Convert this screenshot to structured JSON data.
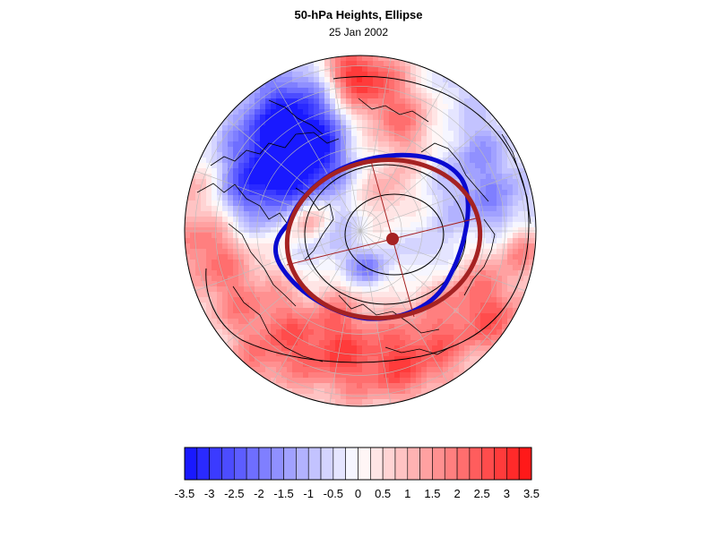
{
  "figure": {
    "title": "50-hPa Heights, Ellipse",
    "subtitle": "25 Jan 2002"
  },
  "map": {
    "projection": "polar stereographic (north pole)",
    "field": "50-hPa height anomaly",
    "colors": {
      "negative_max": "#1010ff",
      "neutral": "#ffffff",
      "positive_max": "#ff1010",
      "vortex_edge": "#0a0ad0",
      "ellipse": "#a52222",
      "coastlines": "#000000",
      "gridlines": "#bbbbbb"
    },
    "overlays": [
      "vortex edge contour",
      "fitted ellipse",
      "ellipse center",
      "major axis",
      "minor axis"
    ]
  },
  "colorbar": {
    "levels": [
      -3.5,
      -3.25,
      -3,
      -2.75,
      -2.5,
      -2.25,
      -2,
      -1.75,
      -1.5,
      -1.25,
      -1,
      -0.75,
      -0.5,
      -0.25,
      0,
      0.25,
      0.5,
      0.75,
      1,
      1.25,
      1.5,
      1.75,
      2,
      2.25,
      2.5,
      2.75,
      3,
      3.25,
      3.5
    ],
    "tick_labels": [
      "-3.5",
      "-3",
      "-2.5",
      "-2",
      "-1.5",
      "-1",
      "-0.5",
      "0",
      "0.5",
      "1",
      "1.5",
      "2",
      "2.5",
      "3",
      "3.5"
    ],
    "range": [
      -3.5,
      3.5
    ],
    "bins": 28
  }
}
